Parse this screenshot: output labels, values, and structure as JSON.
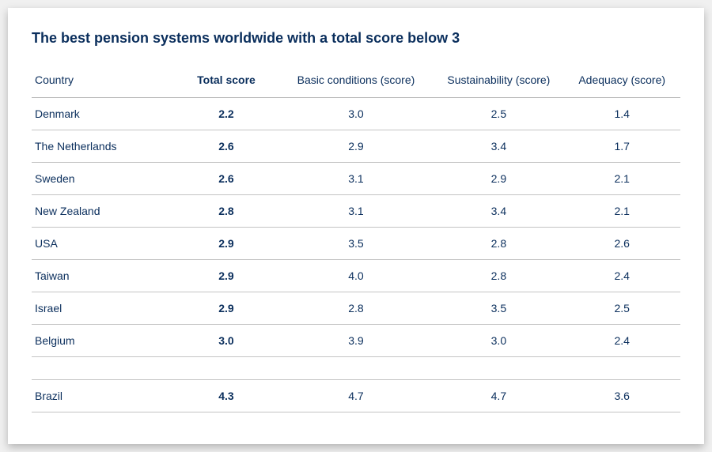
{
  "title": "The best pension systems worldwide with a total score below 3",
  "table": {
    "type": "table",
    "columns": {
      "country": "Country",
      "total": "Total score",
      "basic": "Basic conditions (score)",
      "sustainability": "Sustainability (score)",
      "adequacy": "Adequacy (score)"
    },
    "column_widths_pct": [
      22,
      16,
      24,
      20,
      18
    ],
    "column_alignment": [
      "left",
      "center",
      "center",
      "center",
      "center"
    ],
    "header_text_color": "#0a2e5c",
    "body_text_color": "#0a2e5c",
    "border_color": "#c4c4c4",
    "header_fontsize": 14,
    "body_fontsize": 14,
    "title_fontsize": 18,
    "title_color": "#0a2e5c",
    "background_color": "#ffffff",
    "rows": [
      {
        "country": "Denmark",
        "total": "2.2",
        "basic": "3.0",
        "sustainability": "2.5",
        "adequacy": "1.4"
      },
      {
        "country": "The Netherlands",
        "total": "2.6",
        "basic": "2.9",
        "sustainability": "3.4",
        "adequacy": "1.7"
      },
      {
        "country": "Sweden",
        "total": "2.6",
        "basic": "3.1",
        "sustainability": "2.9",
        "adequacy": "2.1"
      },
      {
        "country": "New Zealand",
        "total": "2.8",
        "basic": "3.1",
        "sustainability": "3.4",
        "adequacy": "2.1"
      },
      {
        "country": "USA",
        "total": "2.9",
        "basic": "3.5",
        "sustainability": "2.8",
        "adequacy": "2.6"
      },
      {
        "country": "Taiwan",
        "total": "2.9",
        "basic": "4.0",
        "sustainability": "2.8",
        "adequacy": "2.4"
      },
      {
        "country": "Israel",
        "total": "2.9",
        "basic": "2.8",
        "sustainability": "3.5",
        "adequacy": "2.5"
      },
      {
        "country": "Belgium",
        "total": "3.0",
        "basic": "3.9",
        "sustainability": "3.0",
        "adequacy": "2.4"
      }
    ],
    "outlier": {
      "country": "Brazil",
      "total": "4.3",
      "basic": "4.7",
      "sustainability": "4.7",
      "adequacy": "3.6"
    }
  }
}
